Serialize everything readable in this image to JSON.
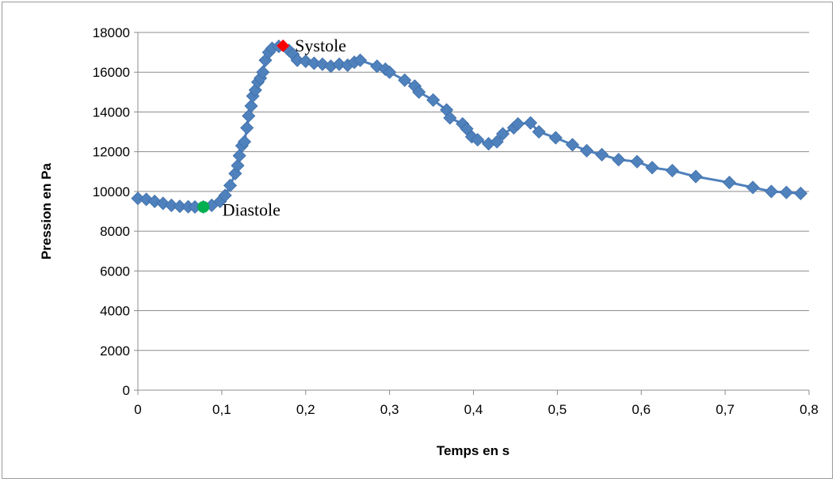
{
  "chart_data": {
    "type": "line",
    "title": "",
    "xlabel": "Temps en s",
    "ylabel": "Pression en Pa",
    "xlim": [
      0,
      0.8
    ],
    "ylim": [
      0,
      18000
    ],
    "x_ticks": [
      "0",
      "0,1",
      "0,2",
      "0,3",
      "0,4",
      "0,5",
      "0,6",
      "0,7",
      "0,8"
    ],
    "y_ticks": [
      "0",
      "2000",
      "4000",
      "6000",
      "8000",
      "10000",
      "12000",
      "14000",
      "16000",
      "18000"
    ],
    "grid": "horizontal",
    "legend": "none",
    "series": [
      {
        "color": "#4f81bd",
        "marker": "diamond",
        "points": [
          [
            0.0,
            9650
          ],
          [
            0.01,
            9600
          ],
          [
            0.02,
            9500
          ],
          [
            0.03,
            9400
          ],
          [
            0.04,
            9300
          ],
          [
            0.05,
            9250
          ],
          [
            0.06,
            9230
          ],
          [
            0.068,
            9220
          ],
          [
            0.078,
            9220
          ],
          [
            0.088,
            9300
          ],
          [
            0.098,
            9500
          ],
          [
            0.104,
            9800
          ],
          [
            0.11,
            10300
          ],
          [
            0.116,
            10900
          ],
          [
            0.119,
            11300
          ],
          [
            0.121,
            11800
          ],
          [
            0.124,
            12300
          ],
          [
            0.127,
            12500
          ],
          [
            0.13,
            13200
          ],
          [
            0.132,
            13800
          ],
          [
            0.135,
            14300
          ],
          [
            0.137,
            14800
          ],
          [
            0.14,
            15100
          ],
          [
            0.143,
            15500
          ],
          [
            0.146,
            15700
          ],
          [
            0.149,
            16000
          ],
          [
            0.152,
            16600
          ],
          [
            0.156,
            17000
          ],
          [
            0.16,
            17200
          ],
          [
            0.168,
            17300
          ],
          [
            0.18,
            17100
          ],
          [
            0.185,
            16900
          ],
          [
            0.19,
            16600
          ],
          [
            0.2,
            16550
          ],
          [
            0.21,
            16450
          ],
          [
            0.22,
            16400
          ],
          [
            0.23,
            16300
          ],
          [
            0.24,
            16400
          ],
          [
            0.25,
            16350
          ],
          [
            0.258,
            16500
          ],
          [
            0.265,
            16600
          ],
          [
            0.285,
            16300
          ],
          [
            0.295,
            16150
          ],
          [
            0.3,
            16000
          ],
          [
            0.318,
            15600
          ],
          [
            0.33,
            15300
          ],
          [
            0.335,
            15000
          ],
          [
            0.352,
            14600
          ],
          [
            0.368,
            14100
          ],
          [
            0.372,
            13700
          ],
          [
            0.387,
            13400
          ],
          [
            0.392,
            13150
          ],
          [
            0.398,
            12750
          ],
          [
            0.405,
            12600
          ],
          [
            0.418,
            12400
          ],
          [
            0.428,
            12500
          ],
          [
            0.435,
            12900
          ],
          [
            0.448,
            13200
          ],
          [
            0.453,
            13400
          ],
          [
            0.468,
            13450
          ],
          [
            0.478,
            13000
          ],
          [
            0.498,
            12700
          ],
          [
            0.518,
            12350
          ],
          [
            0.535,
            12050
          ],
          [
            0.553,
            11850
          ],
          [
            0.573,
            11600
          ],
          [
            0.595,
            11500
          ],
          [
            0.613,
            11200
          ],
          [
            0.637,
            11050
          ],
          [
            0.665,
            10750
          ],
          [
            0.705,
            10450
          ],
          [
            0.733,
            10200
          ],
          [
            0.755,
            10000
          ],
          [
            0.773,
            9950
          ],
          [
            0.79,
            9900
          ]
        ]
      }
    ],
    "annotations": [
      {
        "label": "Systole",
        "x": 0.173,
        "y": 17330,
        "marker": "diamond",
        "color": "#ff0000"
      },
      {
        "label": "Diastole",
        "x": 0.078,
        "y": 9220,
        "marker": "circle",
        "color": "#00b050"
      }
    ]
  }
}
